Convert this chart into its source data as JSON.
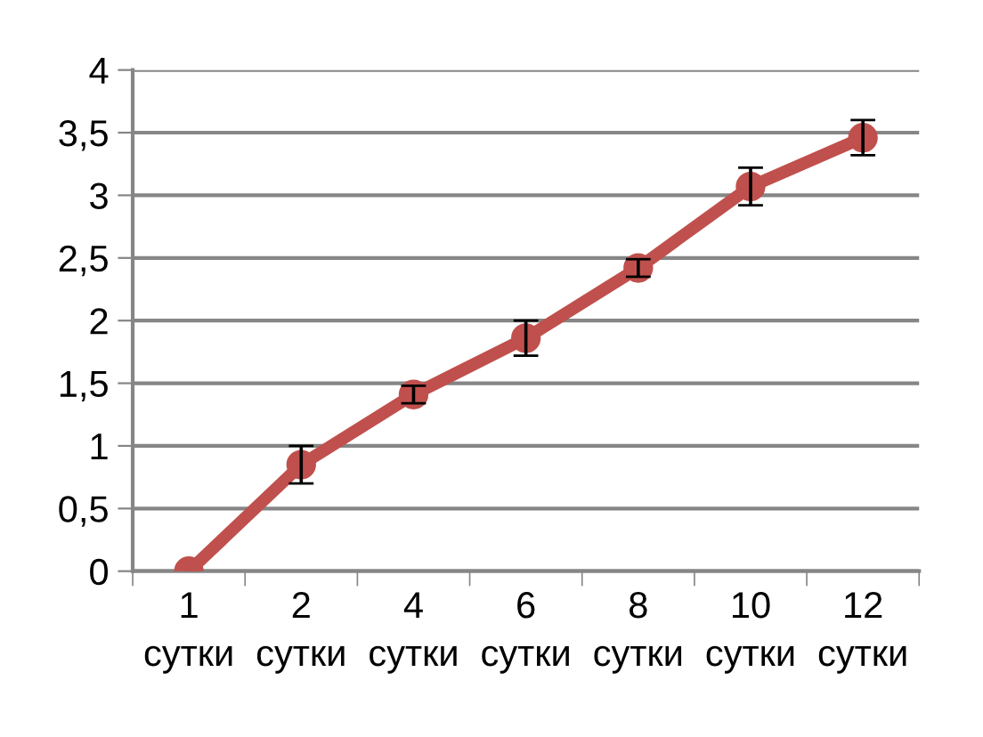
{
  "chart_data": {
    "type": "line",
    "categories": [
      "1\nсутки",
      "2\nсутки",
      "4\nсутки",
      "6\nсутки",
      "8\nсутки",
      "10\nсутки",
      "12\nсутки"
    ],
    "series": [
      {
        "color": "#c0504d",
        "values": [
          0,
          0.85,
          1.41,
          1.86,
          2.42,
          3.07,
          3.46
        ],
        "errors": [
          null,
          0.15,
          0.07,
          0.14,
          0.07,
          0.15,
          0.14
        ]
      }
    ],
    "ylim": [
      0,
      4
    ],
    "yticks": [
      0,
      {
        "value": 0.5,
        "label": "0,5"
      },
      1,
      {
        "value": 1.5,
        "label": "1,5"
      },
      2,
      {
        "value": 2.5,
        "label": "2,5"
      },
      3,
      {
        "value": 3.5,
        "label": "3,5"
      },
      4
    ],
    "grid": "y",
    "marker": "circle",
    "line_style": "solid",
    "legend": false
  }
}
